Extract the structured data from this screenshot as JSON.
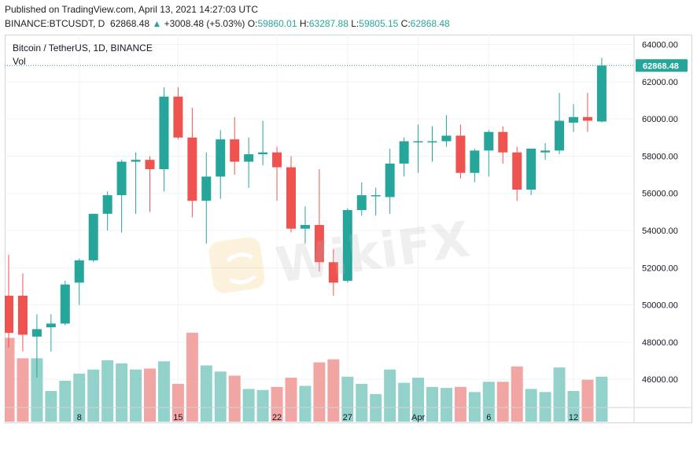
{
  "header": {
    "published": "Published on TradingView.com, April 13, 2021 14:27:03 UTC",
    "symbol": "BINANCE:BTCUSDT, D",
    "last": "62868.48",
    "change_arrow": "▲",
    "change": "+3008.48 (+5.03%)",
    "o_label": "O:",
    "o_val": "59860.01",
    "h_label": "H:",
    "h_val": "63287.88",
    "l_label": "L:",
    "l_val": "59805.15",
    "c_label": "C:",
    "c_val": "62868.48"
  },
  "chart_title": "Bitcoin / TetherUS, 1D, BINANCE",
  "volume_label": "Vol",
  "watermark": "WikiFX",
  "colors": {
    "up": "#26a69a",
    "down": "#ef5350",
    "vol_up": "#93d2cb",
    "vol_down": "#f2a6a4",
    "grid": "#f0f3fa",
    "axis_text": "#131722",
    "last_price_bg": "#26a69a"
  },
  "chart_data": {
    "type": "candlestick",
    "title": "Bitcoin / TetherUS, 1D, BINANCE",
    "y_axis": {
      "range": [
        45000,
        64500
      ],
      "ticks": [
        46000,
        48000,
        50000,
        52000,
        54000,
        56000,
        58000,
        60000,
        62000,
        64000
      ],
      "tick_labels": [
        "46000.00",
        "48000.00",
        "50000.00",
        "52000.00",
        "54000.00",
        "56000.00",
        "58000.00",
        "60000.00",
        "62000.00",
        "64000.00"
      ]
    },
    "x_axis": {
      "tick_labels": [
        {
          "label": "8",
          "index": 5
        },
        {
          "label": "15",
          "index": 12
        },
        {
          "label": "22",
          "index": 19
        },
        {
          "label": "27",
          "index": 24
        },
        {
          "label": "Apr",
          "index": 29
        },
        {
          "label": "6",
          "index": 34
        },
        {
          "label": "12",
          "index": 40
        }
      ]
    },
    "last_price": 62868.48,
    "last_price_label": "62868.48",
    "candles": [
      {
        "o": 50500,
        "h": 52700,
        "l": 47700,
        "c": 48500,
        "v": 0.82
      },
      {
        "o": 50500,
        "h": 51700,
        "l": 47500,
        "c": 48400,
        "v": 0.62
      },
      {
        "o": 48300,
        "h": 49500,
        "l": 46100,
        "c": 48700,
        "v": 0.62
      },
      {
        "o": 48800,
        "h": 49500,
        "l": 47500,
        "c": 49000,
        "v": 0.3
      },
      {
        "o": 49000,
        "h": 51300,
        "l": 48900,
        "c": 51100,
        "v": 0.4
      },
      {
        "o": 51200,
        "h": 52500,
        "l": 50000,
        "c": 52400,
        "v": 0.47
      },
      {
        "o": 52400,
        "h": 54900,
        "l": 52300,
        "c": 54900,
        "v": 0.51
      },
      {
        "o": 54900,
        "h": 56100,
        "l": 54000,
        "c": 55900,
        "v": 0.6
      },
      {
        "o": 55900,
        "h": 57800,
        "l": 53900,
        "c": 57700,
        "v": 0.57
      },
      {
        "o": 57700,
        "h": 58200,
        "l": 54900,
        "c": 57800,
        "v": 0.51
      },
      {
        "o": 57800,
        "h": 58000,
        "l": 55000,
        "c": 57300,
        "v": 0.52
      },
      {
        "o": 57300,
        "h": 61700,
        "l": 56100,
        "c": 61200,
        "v": 0.59
      },
      {
        "o": 61200,
        "h": 61700,
        "l": 58900,
        "c": 59000,
        "v": 0.37
      },
      {
        "o": 59000,
        "h": 60600,
        "l": 54700,
        "c": 55600,
        "v": 0.87
      },
      {
        "o": 55600,
        "h": 58200,
        "l": 53300,
        "c": 56900,
        "v": 0.55
      },
      {
        "o": 56900,
        "h": 59400,
        "l": 55700,
        "c": 58900,
        "v": 0.49
      },
      {
        "o": 58900,
        "h": 60100,
        "l": 57000,
        "c": 57700,
        "v": 0.45
      },
      {
        "o": 57700,
        "h": 59000,
        "l": 56300,
        "c": 58100,
        "v": 0.32
      },
      {
        "o": 58100,
        "h": 59900,
        "l": 57500,
        "c": 58200,
        "v": 0.31
      },
      {
        "o": 58200,
        "h": 58500,
        "l": 55600,
        "c": 57400,
        "v": 0.34
      },
      {
        "o": 57400,
        "h": 58000,
        "l": 53900,
        "c": 54100,
        "v": 0.43
      },
      {
        "o": 54100,
        "h": 55300,
        "l": 53300,
        "c": 54300,
        "v": 0.35
      },
      {
        "o": 54300,
        "h": 57300,
        "l": 51800,
        "c": 52300,
        "v": 0.58
      },
      {
        "o": 52300,
        "h": 53000,
        "l": 50500,
        "c": 51200,
        "v": 0.61
      },
      {
        "o": 51300,
        "h": 55200,
        "l": 51200,
        "c": 55100,
        "v": 0.44
      },
      {
        "o": 55100,
        "h": 56600,
        "l": 54800,
        "c": 55900,
        "v": 0.37
      },
      {
        "o": 55900,
        "h": 56300,
        "l": 54800,
        "c": 55900,
        "v": 0.27
      },
      {
        "o": 55800,
        "h": 58400,
        "l": 54900,
        "c": 57600,
        "v": 0.51
      },
      {
        "o": 57600,
        "h": 59000,
        "l": 56900,
        "c": 58800,
        "v": 0.38
      },
      {
        "o": 58800,
        "h": 59700,
        "l": 57100,
        "c": 58800,
        "v": 0.43
      },
      {
        "o": 58800,
        "h": 59600,
        "l": 57700,
        "c": 58800,
        "v": 0.34
      },
      {
        "o": 58800,
        "h": 60200,
        "l": 58500,
        "c": 59100,
        "v": 0.33
      },
      {
        "o": 59100,
        "h": 59700,
        "l": 56800,
        "c": 57100,
        "v": 0.34
      },
      {
        "o": 57100,
        "h": 58400,
        "l": 56600,
        "c": 58300,
        "v": 0.29
      },
      {
        "o": 58300,
        "h": 59400,
        "l": 56900,
        "c": 59300,
        "v": 0.39
      },
      {
        "o": 59300,
        "h": 59600,
        "l": 57600,
        "c": 58200,
        "v": 0.39
      },
      {
        "o": 58200,
        "h": 58500,
        "l": 55600,
        "c": 56200,
        "v": 0.54
      },
      {
        "o": 56200,
        "h": 58400,
        "l": 55900,
        "c": 58400,
        "v": 0.32
      },
      {
        "o": 58200,
        "h": 58700,
        "l": 57800,
        "c": 58300,
        "v": 0.29
      },
      {
        "o": 58300,
        "h": 61400,
        "l": 58100,
        "c": 59900,
        "v": 0.53
      },
      {
        "o": 59800,
        "h": 60800,
        "l": 59300,
        "c": 60100,
        "v": 0.3
      },
      {
        "o": 60100,
        "h": 61400,
        "l": 59300,
        "c": 59900,
        "v": 0.41
      },
      {
        "o": 59860.01,
        "h": 63287.88,
        "l": 59805.15,
        "c": 62868.48,
        "v": 0.44
      }
    ]
  }
}
